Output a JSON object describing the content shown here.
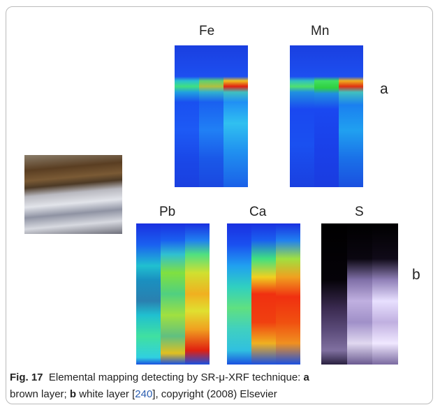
{
  "figure": {
    "panel_labels": [
      "Fe",
      "Mn",
      "Pb",
      "Ca",
      "S"
    ],
    "row_labels": [
      "a",
      "b"
    ],
    "caption": {
      "label": "Fig. 17",
      "text": "Elemental mapping detecting by SR-μ-XRF technique:",
      "part_a": "a",
      "part_a_text": "brown layer;",
      "part_b": "b",
      "part_b_text": "white layer [",
      "reference": "240",
      "credit": "], copyright (2008) Elsevier"
    }
  }
}
